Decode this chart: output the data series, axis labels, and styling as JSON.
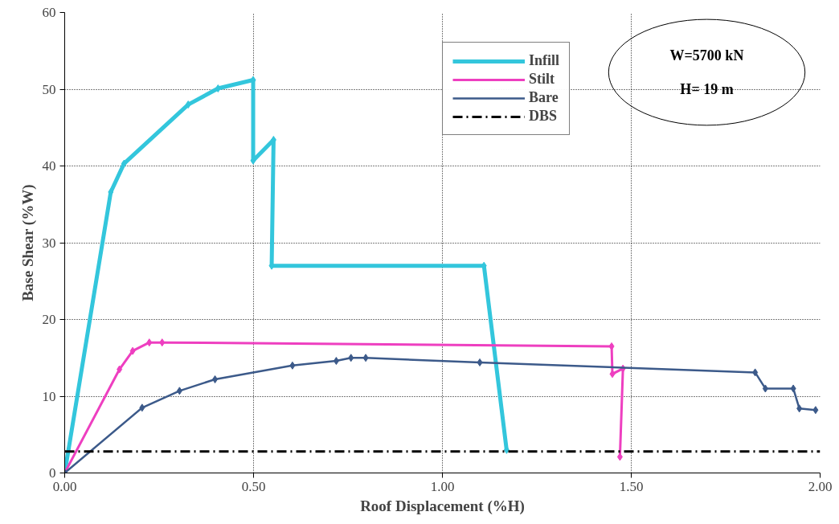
{
  "chart_data": {
    "type": "line",
    "xlabel": "Roof Displacement (%H)",
    "ylabel": "Base Shear (%W)",
    "xlim": [
      0,
      2.0
    ],
    "ylim": [
      0,
      60
    ],
    "xticks": [
      {
        "value": 0,
        "label": "0.00"
      },
      {
        "value": 0.5,
        "label": "0.50"
      },
      {
        "value": 1.0,
        "label": "1.00"
      },
      {
        "value": 1.5,
        "label": "1.50"
      },
      {
        "value": 2.0,
        "label": "2.00"
      }
    ],
    "yticks": [
      0,
      10,
      20,
      30,
      40,
      50,
      60
    ],
    "grid": true,
    "legend": "top",
    "marker": "diamond",
    "series": [
      {
        "name": "Infill",
        "color": "#33c6dc",
        "x": [
          0,
          0.122,
          0.157,
          0.327,
          0.406,
          0.499,
          0.499,
          0.553,
          0.548,
          1.11,
          1.17
        ],
        "values": [
          0,
          36.6,
          40.3,
          48.0,
          50.1,
          51.2,
          40.7,
          43.4,
          27.0,
          27.0,
          3.0
        ]
      },
      {
        "name": "Stilt",
        "color": "#ee3fc0",
        "x": [
          0,
          0.145,
          0.18,
          0.224,
          0.258,
          1.448,
          1.45,
          1.478,
          1.47
        ],
        "values": [
          0,
          13.5,
          15.9,
          17.0,
          17.0,
          16.5,
          12.9,
          13.6,
          2.1
        ]
      },
      {
        "name": "Bare",
        "color": "#3c5a8a",
        "x": [
          0,
          0.205,
          0.304,
          0.398,
          0.603,
          0.719,
          0.758,
          0.797,
          1.099,
          1.828,
          1.855,
          1.929,
          1.945,
          1.988
        ],
        "values": [
          0,
          8.5,
          10.7,
          12.2,
          14.0,
          14.6,
          15.0,
          15.0,
          14.4,
          13.1,
          11.0,
          11.0,
          8.4,
          8.2
        ]
      }
    ],
    "ref_lines": [
      {
        "axis": "y",
        "value": 2.8,
        "label": "DBS",
        "color": "#000000",
        "line_style": "dashdot"
      }
    ],
    "annotations": [
      "W=5700 kN",
      "H= 19 m"
    ]
  }
}
